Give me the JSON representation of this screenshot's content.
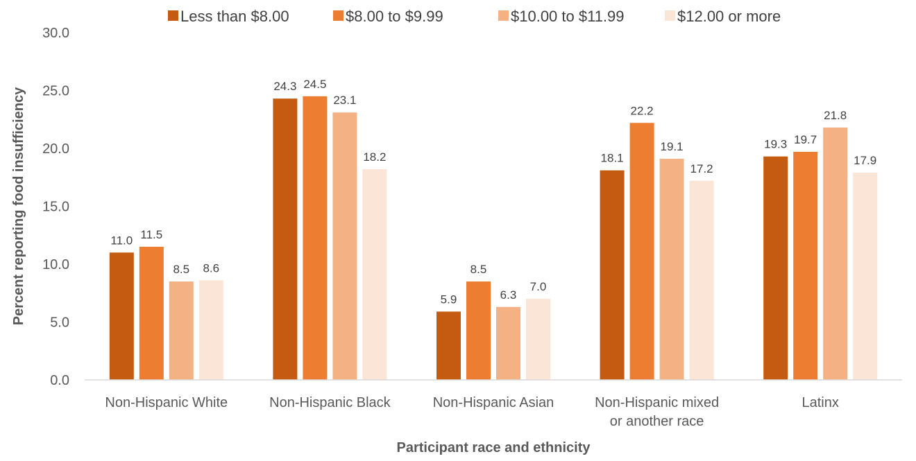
{
  "chart_data": {
    "type": "bar",
    "title": "",
    "xlabel": "Participant race and ethnicity",
    "ylabel": "Percent reporting food insufficiency",
    "ylim": [
      0,
      30
    ],
    "yticks": [
      "0.0",
      "5.0",
      "10.0",
      "15.0",
      "20.0",
      "25.0",
      "30.0"
    ],
    "grid": false,
    "legend_position": "top",
    "categories": [
      [
        "Non-Hispanic White"
      ],
      [
        "Non-Hispanic Black"
      ],
      [
        "Non-Hispanic Asian"
      ],
      [
        "Non-Hispanic mixed",
        "or another race"
      ],
      [
        "Latinx"
      ]
    ],
    "series": [
      {
        "name": "Less than $8.00",
        "color": "#C55A11",
        "values": [
          11.0,
          24.3,
          5.9,
          18.1,
          19.3
        ],
        "labels": [
          "11.0",
          "24.3",
          "5.9",
          "18.1",
          "19.3"
        ]
      },
      {
        "name": "$8.00 to $9.99",
        "color": "#ED7D31",
        "values": [
          11.5,
          24.5,
          8.5,
          22.2,
          19.7
        ],
        "labels": [
          "11.5",
          "24.5",
          "8.5",
          "22.2",
          "19.7"
        ]
      },
      {
        "name": "$10.00 to $11.99",
        "color": "#F4B183",
        "values": [
          8.5,
          23.1,
          6.3,
          19.1,
          21.8
        ],
        "labels": [
          "8.5",
          "23.1",
          "6.3",
          "19.1",
          "21.8"
        ]
      },
      {
        "name": "$12.00 or more",
        "color": "#FBE5D6",
        "values": [
          8.6,
          18.2,
          7.0,
          17.2,
          17.9
        ],
        "labels": [
          "8.6",
          "18.2",
          "7.0",
          "17.2",
          "17.9"
        ]
      }
    ]
  }
}
